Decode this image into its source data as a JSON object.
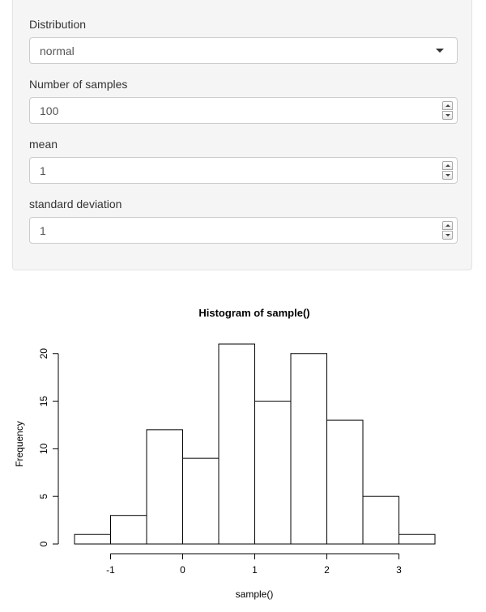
{
  "inputs": {
    "distribution": {
      "label": "Distribution",
      "value": "normal"
    },
    "num_samples": {
      "label": "Number of samples",
      "value": "100"
    },
    "mean": {
      "label": "mean",
      "value": "1"
    },
    "sd": {
      "label": "standard deviation",
      "value": "1"
    }
  },
  "chart_data": {
    "type": "bar",
    "title": "Histogram of sample()",
    "xlabel": "sample()",
    "ylabel": "Frequency",
    "bin_edges": [
      -1.5,
      -1,
      -0.5,
      0,
      0.5,
      1,
      1.5,
      2,
      2.5,
      3,
      3.5
    ],
    "values": [
      1,
      3,
      12,
      9,
      21,
      15,
      20,
      13,
      5,
      1
    ],
    "x_ticks": [
      -1,
      0,
      1,
      2,
      3
    ],
    "x_tick_labels": [
      "-1",
      "0",
      "1",
      "2",
      "3"
    ],
    "y_ticks": [
      0,
      5,
      10,
      15,
      20
    ],
    "y_tick_labels": [
      "0",
      "5",
      "10",
      "15",
      "20"
    ],
    "xlim": [
      -1.5,
      3.5
    ],
    "ylim": [
      0,
      21
    ],
    "grid": false,
    "bar_fill": "#ffffff",
    "bar_stroke": "#000000"
  }
}
